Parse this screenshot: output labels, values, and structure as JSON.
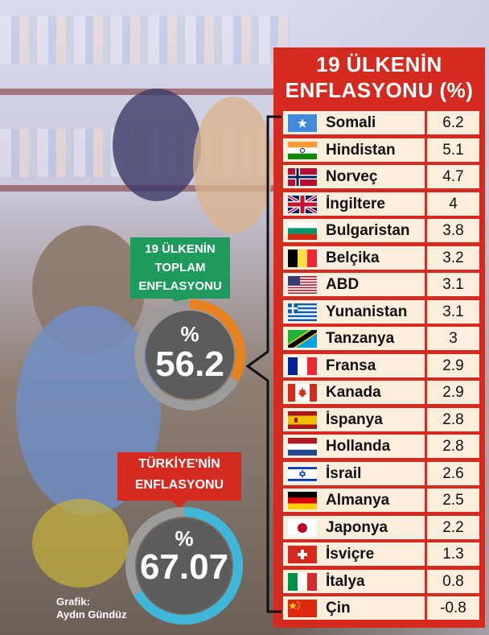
{
  "table": {
    "title_line1": "19 ÜLKENİN",
    "title_line2": "ENFLASYONU (%)"
  },
  "summary": {
    "total_label": [
      "19 ÜLKENİN",
      "TOPLAM",
      "ENFLASYONU"
    ],
    "total_percent_sign": "%",
    "total_value": "56.2",
    "turkey_label": [
      "TÜRKİYE'NİN",
      "ENFLASYONU"
    ],
    "turkey_percent_sign": "%",
    "turkey_value": "67.07"
  },
  "credit": {
    "line1": "Grafik:",
    "line2": "Aydın Gündüz"
  },
  "colors": {
    "header_red": "#d52a1f",
    "total_badge_green": "#1e9a5c",
    "total_ring_orange": "#e8821e",
    "turkey_ring_cyan": "#3fb7d9",
    "row_bg": "#fbeedd"
  },
  "chart_data": {
    "type": "table",
    "title": "19 ÜLKENİN ENFLASYONU (%)",
    "categories": [
      "Somali",
      "Hindistan",
      "Norveç",
      "İngiltere",
      "Bulgaristan",
      "Belçika",
      "ABD",
      "Yunanistan",
      "Tanzanya",
      "Fransa",
      "Kanada",
      "İspanya",
      "Hollanda",
      "İsrail",
      "Almanya",
      "Japonya",
      "İsviçre",
      "İtalya",
      "Çin"
    ],
    "values": [
      6.2,
      5.1,
      4.7,
      4,
      3.8,
      3.2,
      3.1,
      3.1,
      3,
      2.9,
      2.9,
      2.8,
      2.8,
      2.6,
      2.5,
      2.2,
      1.3,
      0.8,
      -0.8
    ],
    "flag_icons": [
      "somalia-flag-icon",
      "india-flag-icon",
      "norway-flag-icon",
      "uk-flag-icon",
      "bulgaria-flag-icon",
      "belgium-flag-icon",
      "usa-flag-icon",
      "greece-flag-icon",
      "tanzania-flag-icon",
      "france-flag-icon",
      "canada-flag-icon",
      "spain-flag-icon",
      "netherlands-flag-icon",
      "israel-flag-icon",
      "germany-flag-icon",
      "japan-flag-icon",
      "switzerland-flag-icon",
      "italy-flag-icon",
      "china-flag-icon"
    ],
    "totals": {
      "sum_19_countries": 56.2,
      "turkey": 67.07
    }
  }
}
